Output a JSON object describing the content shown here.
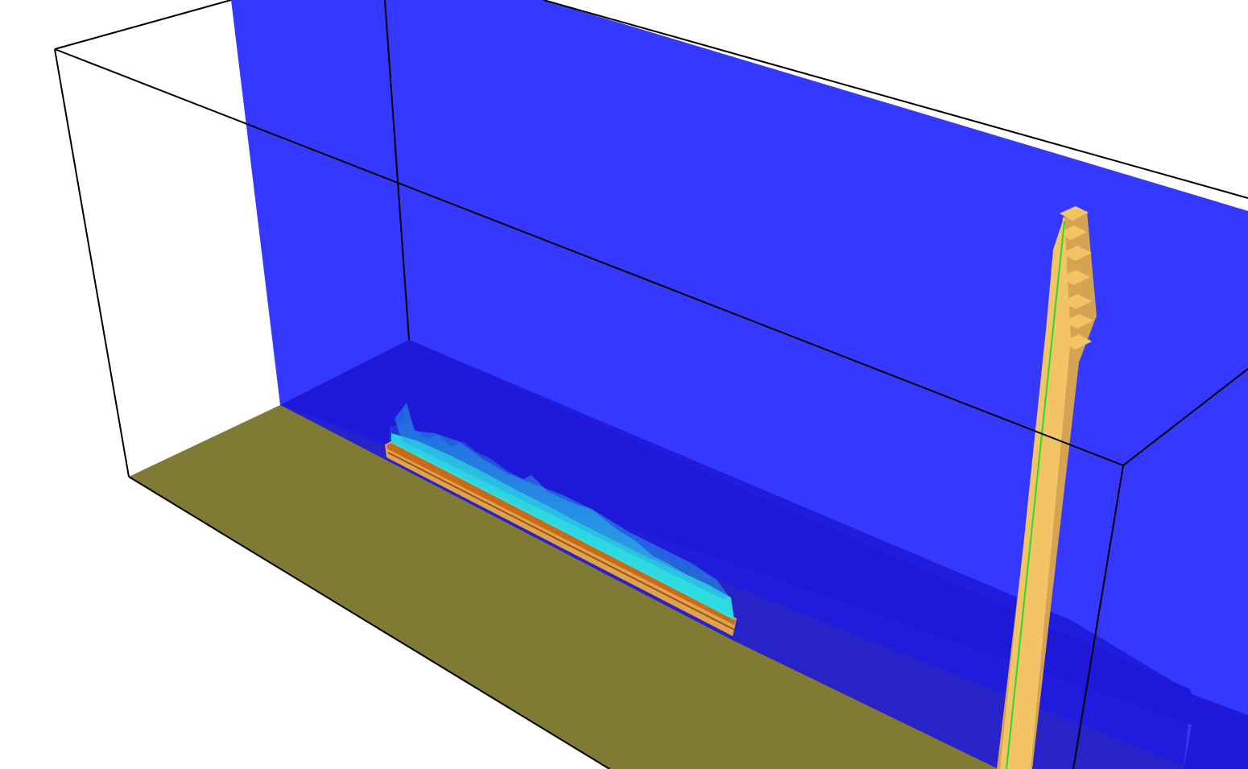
{
  "scene": {
    "colors": {
      "background": "#ffffff",
      "ground": "#807a35",
      "back_wall": "#3538ff",
      "floor_shadow": "#1e1ad8",
      "bounding_box": "#000000",
      "burner": "#e5a04a",
      "burner_top": "#c86a1a",
      "flame_primary": "#2fe0e0",
      "flame_secondary": "#25a8e8",
      "tower": "#f2c466",
      "tower_shade": "#d4a453",
      "tower_line": "#22dd22"
    },
    "icons": {
      "bounding_box": "wireframe-box-icon",
      "burner": "burner-bar-icon",
      "tower": "stacked-tower-icon"
    }
  }
}
